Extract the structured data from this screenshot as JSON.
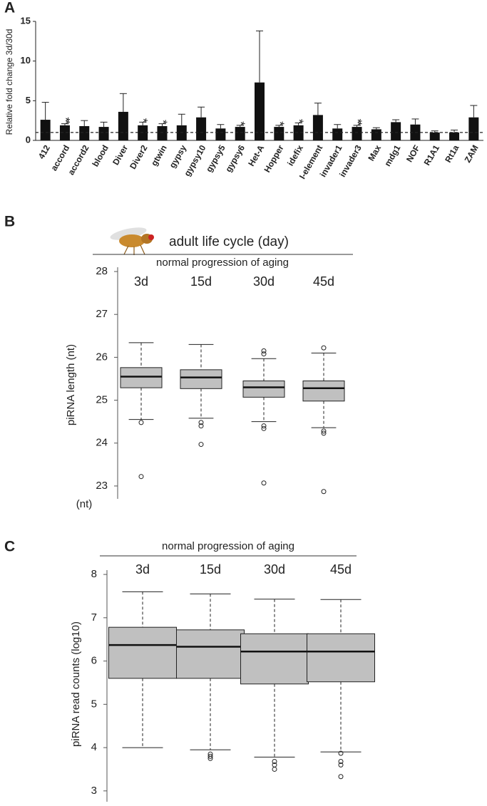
{
  "chart_data": [
    {
      "type": "bar",
      "panel": "A",
      "ylabel": "Relative fold change 3d/30d",
      "categories": [
        "412",
        "accord",
        "accord2",
        "blood",
        "Diver",
        "Diver2",
        "gtwin",
        "gypsy",
        "gypsy10",
        "gypsy5",
        "gypsy6",
        "Het-A",
        "Hopper",
        "idefix",
        "I-element",
        "invader1",
        "invader3",
        "Max",
        "mdg1",
        "NOF",
        "R1A1",
        "Rt1a",
        "ZAM"
      ],
      "values": [
        2.6,
        1.9,
        1.8,
        1.7,
        3.6,
        1.9,
        1.8,
        1.9,
        2.9,
        1.5,
        1.7,
        7.3,
        1.7,
        1.9,
        3.2,
        1.5,
        1.7,
        1.4,
        2.3,
        2.0,
        1.0,
        1.0,
        2.9
      ],
      "errors": [
        2.2,
        0.2,
        0.7,
        0.6,
        2.3,
        0.4,
        0.3,
        1.4,
        1.3,
        0.5,
        0.2,
        6.5,
        0.2,
        0.3,
        1.5,
        0.5,
        0.2,
        0.2,
        0.3,
        0.7,
        0.2,
        0.3,
        1.5
      ],
      "color": "#111111",
      "ylim": [
        0,
        15
      ],
      "yticks": [
        0,
        5,
        10,
        15
      ],
      "refline": 1,
      "annotations": [
        {
          "x": "accord",
          "text": "**"
        },
        {
          "x": "Diver2",
          "text": "*"
        },
        {
          "x": "gtwin",
          "text": "*"
        },
        {
          "x": "gypsy6",
          "text": "*"
        },
        {
          "x": "Hopper",
          "text": "*"
        },
        {
          "x": "idefix",
          "text": "*"
        },
        {
          "x": "invader3",
          "text": "**"
        }
      ]
    },
    {
      "type": "box",
      "panel": "B",
      "title": "adult life cycle (day)",
      "subtitle": "normal progression of aging",
      "ylabel": "piRNA length (nt)",
      "yunit": "(nt)",
      "color": "#c0c0c0",
      "categories": [
        "3d",
        "15d",
        "30d",
        "45d"
      ],
      "boxes": [
        {
          "min": 24.55,
          "q1": 25.29,
          "median": 25.55,
          "q3": 25.76,
          "max": 26.34,
          "outliers": [
            24.48,
            23.22
          ]
        },
        {
          "min": 24.58,
          "q1": 25.27,
          "median": 25.53,
          "q3": 25.71,
          "max": 26.3,
          "outliers": [
            24.48,
            24.4,
            23.97
          ]
        },
        {
          "min": 24.5,
          "q1": 25.07,
          "median": 25.3,
          "q3": 25.45,
          "max": 25.97,
          "outliers": [
            26.15,
            26.08,
            24.4,
            24.34,
            23.07
          ]
        },
        {
          "min": 24.36,
          "q1": 24.98,
          "median": 25.28,
          "q3": 25.45,
          "max": 26.1,
          "outliers": [
            26.22,
            24.28,
            24.23,
            22.87
          ]
        }
      ],
      "ylim": [
        22.7,
        28.1
      ],
      "yticks": [
        23,
        24,
        25,
        26,
        27,
        28
      ]
    },
    {
      "type": "box",
      "panel": "C",
      "subtitle": "normal progression of aging",
      "ylabel": "piRNA read counts (log10)",
      "color": "#c0c0c0",
      "categories": [
        "3d",
        "15d",
        "30d",
        "45d"
      ],
      "boxes": [
        {
          "min": 4.0,
          "q1": 5.6,
          "median": 6.37,
          "q3": 6.78,
          "max": 7.6,
          "outliers": []
        },
        {
          "min": 3.95,
          "q1": 5.6,
          "median": 6.33,
          "q3": 6.72,
          "max": 7.55,
          "outliers": [
            3.85,
            3.8,
            3.75
          ]
        },
        {
          "min": 3.78,
          "q1": 5.47,
          "median": 6.22,
          "q3": 6.63,
          "max": 7.43,
          "outliers": [
            3.68,
            3.6,
            3.5
          ]
        },
        {
          "min": 3.9,
          "q1": 5.52,
          "median": 6.22,
          "q3": 6.63,
          "max": 7.42,
          "outliers": [
            3.87,
            3.68,
            3.6,
            3.33
          ]
        }
      ],
      "ylim": [
        2.75,
        8.1
      ],
      "yticks": [
        3,
        4,
        5,
        6,
        7,
        8
      ]
    }
  ]
}
